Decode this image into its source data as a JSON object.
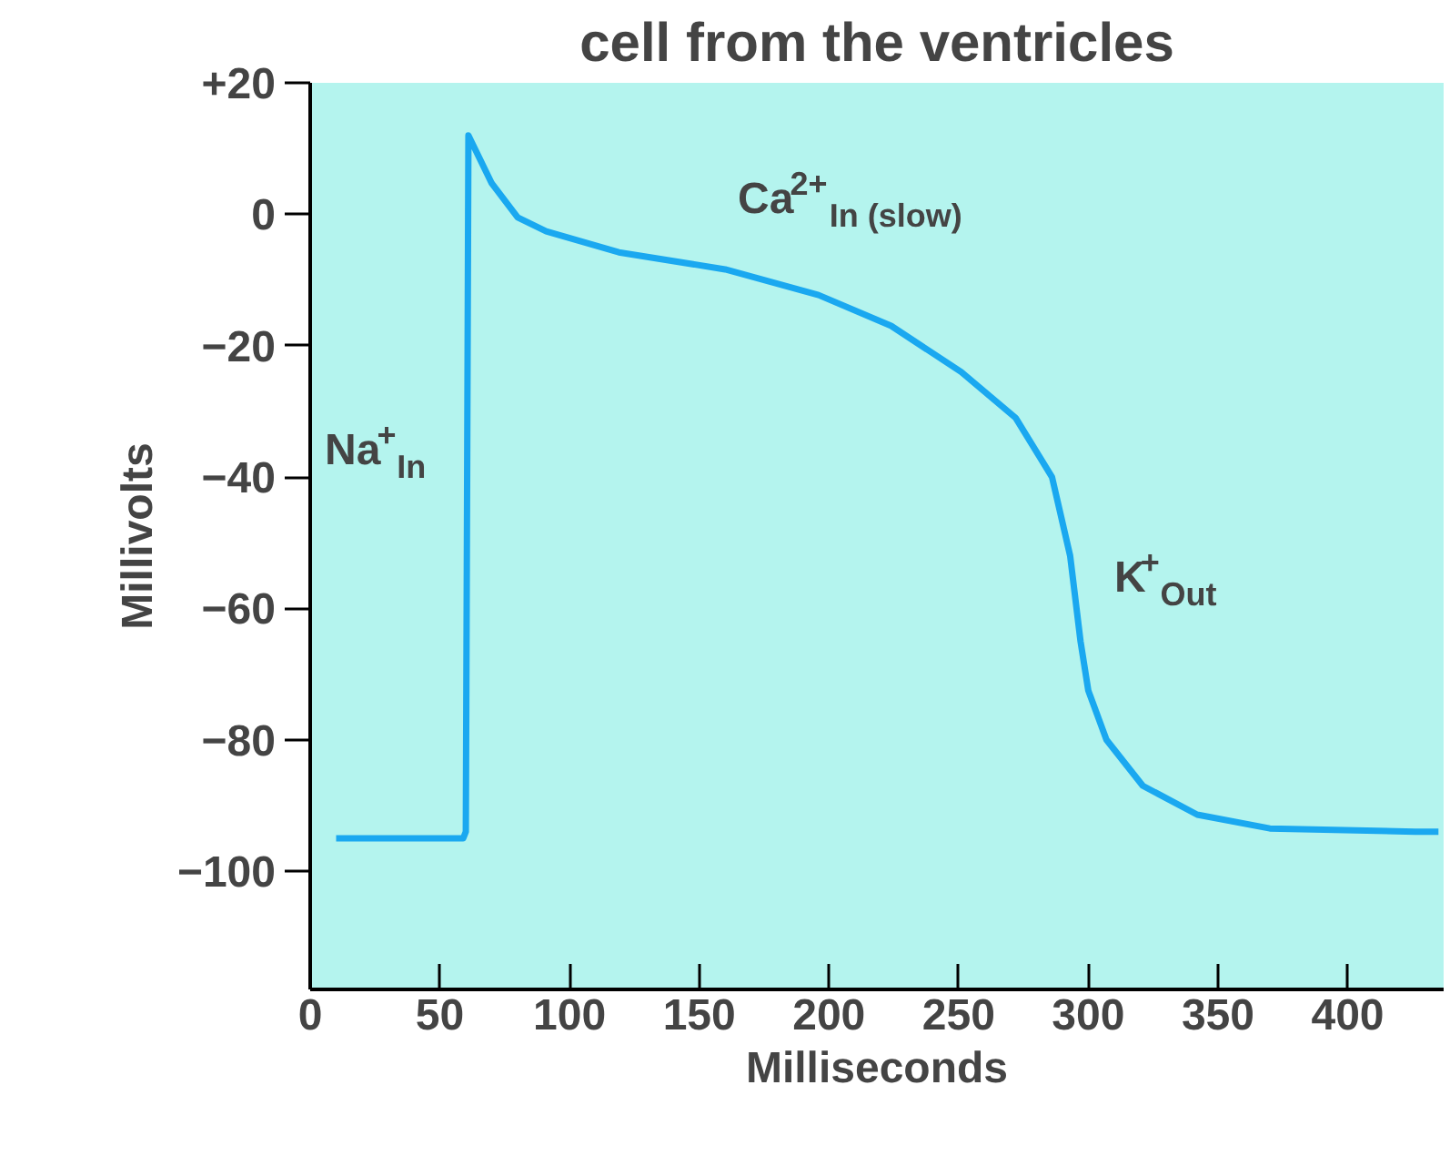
{
  "chart_data": {
    "type": "line",
    "title": "cell from the ventricles",
    "xlabel": "Milliseconds",
    "ylabel": "Millivolts",
    "x": [
      10,
      59,
      60,
      61,
      70,
      80,
      91,
      119,
      160,
      196,
      224,
      251,
      272,
      286,
      293,
      297,
      300,
      307,
      321,
      342,
      370,
      426,
      435
    ],
    "series": [
      {
        "color": "#1aa8f0",
        "values": [
          -95,
          -95,
          -94,
          12,
          4.7,
          -0.5,
          -2.6,
          -5.8,
          -8.4,
          -12.3,
          -17,
          -24,
          -31,
          -40,
          -52,
          -65,
          -72.5,
          -80,
          -87,
          -91.4,
          -93.5,
          -94,
          -94
        ]
      }
    ],
    "xlim": [
      0,
      437
    ],
    "xticks": [
      0,
      50,
      100,
      150,
      200,
      250,
      300,
      350,
      400
    ],
    "ylim": [
      -118,
      20
    ],
    "yticks": [
      {
        "value": 20,
        "label": "+20"
      },
      0,
      {
        "value": -20,
        "label": "−20"
      },
      {
        "value": -40,
        "label": "−40"
      },
      {
        "value": -60,
        "label": "−60"
      },
      {
        "value": -80,
        "label": "−80"
      },
      {
        "value": -100,
        "label": "−100"
      }
    ],
    "grid": false,
    "marker": "none",
    "line_style": "solid",
    "annotations": [
      "Na$^{+}$$_{In}$",
      "Ca$^{2+}$$_{In (slow)}$",
      "K$^{+}$$_{Out}$"
    ]
  }
}
